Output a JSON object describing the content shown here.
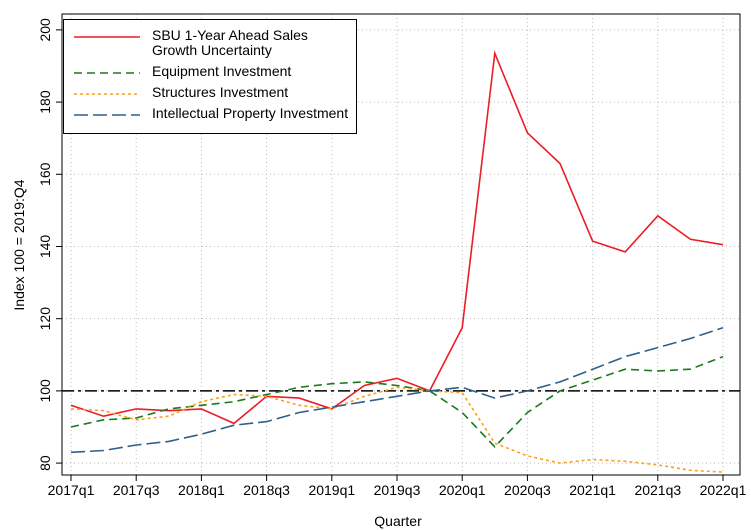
{
  "chart_data": {
    "type": "line",
    "x_label": "Quarter",
    "y_label": "Index 100 = 2019:Q4",
    "categories": [
      "2017q1",
      null,
      "2017q3",
      null,
      "2018q1",
      null,
      "2018q3",
      null,
      "2019q1",
      null,
      "2019q3",
      null,
      "2020q1",
      null,
      "2020q3",
      null,
      "2021q1",
      null,
      "2021q3",
      null,
      "2022q1"
    ],
    "series": [
      {
        "name": "SBU 1-Year Ahead Sales Growth Uncertainty",
        "color": "#ee1c25",
        "dash": "none",
        "values": [
          96,
          93,
          95,
          94.5,
          95,
          91,
          98.5,
          98,
          95,
          101.5,
          103.5,
          100,
          117.5,
          193.5,
          171.5,
          163,
          141.5,
          138.5,
          148.5,
          142,
          140.5
        ]
      },
      {
        "name": "Equipment Investment",
        "color": "#1a7a1a",
        "dash": "8 5",
        "values": [
          90,
          92,
          92.5,
          95,
          96,
          97,
          99,
          101,
          102,
          102.5,
          101.5,
          100,
          94,
          84.5,
          94,
          100,
          103,
          106,
          105.5,
          106,
          109.5
        ]
      },
      {
        "name": "Structures Investment",
        "color": "#ff9f1a",
        "dash": "3 3",
        "values": [
          95,
          94.5,
          92,
          93,
          97,
          99,
          98.5,
          96,
          95,
          98.5,
          101,
          100,
          99.5,
          85.5,
          82,
          80,
          81,
          80.5,
          79.5,
          78,
          77.5
        ]
      },
      {
        "name": "Intellectual Property Investment",
        "color": "#2f5f8a",
        "dash": "14 5",
        "values": [
          83,
          83.5,
          85,
          86,
          88,
          90.5,
          91.5,
          94,
          95.5,
          97,
          98.5,
          100,
          101,
          98,
          100,
          102.5,
          106,
          109.5,
          112,
          114.5,
          117.5
        ]
      }
    ],
    "reference_line": 100,
    "ylim": [
      76.7,
      204.4
    ],
    "yticks": [
      80,
      100,
      120,
      140,
      160,
      180,
      200
    ],
    "grid": true
  }
}
